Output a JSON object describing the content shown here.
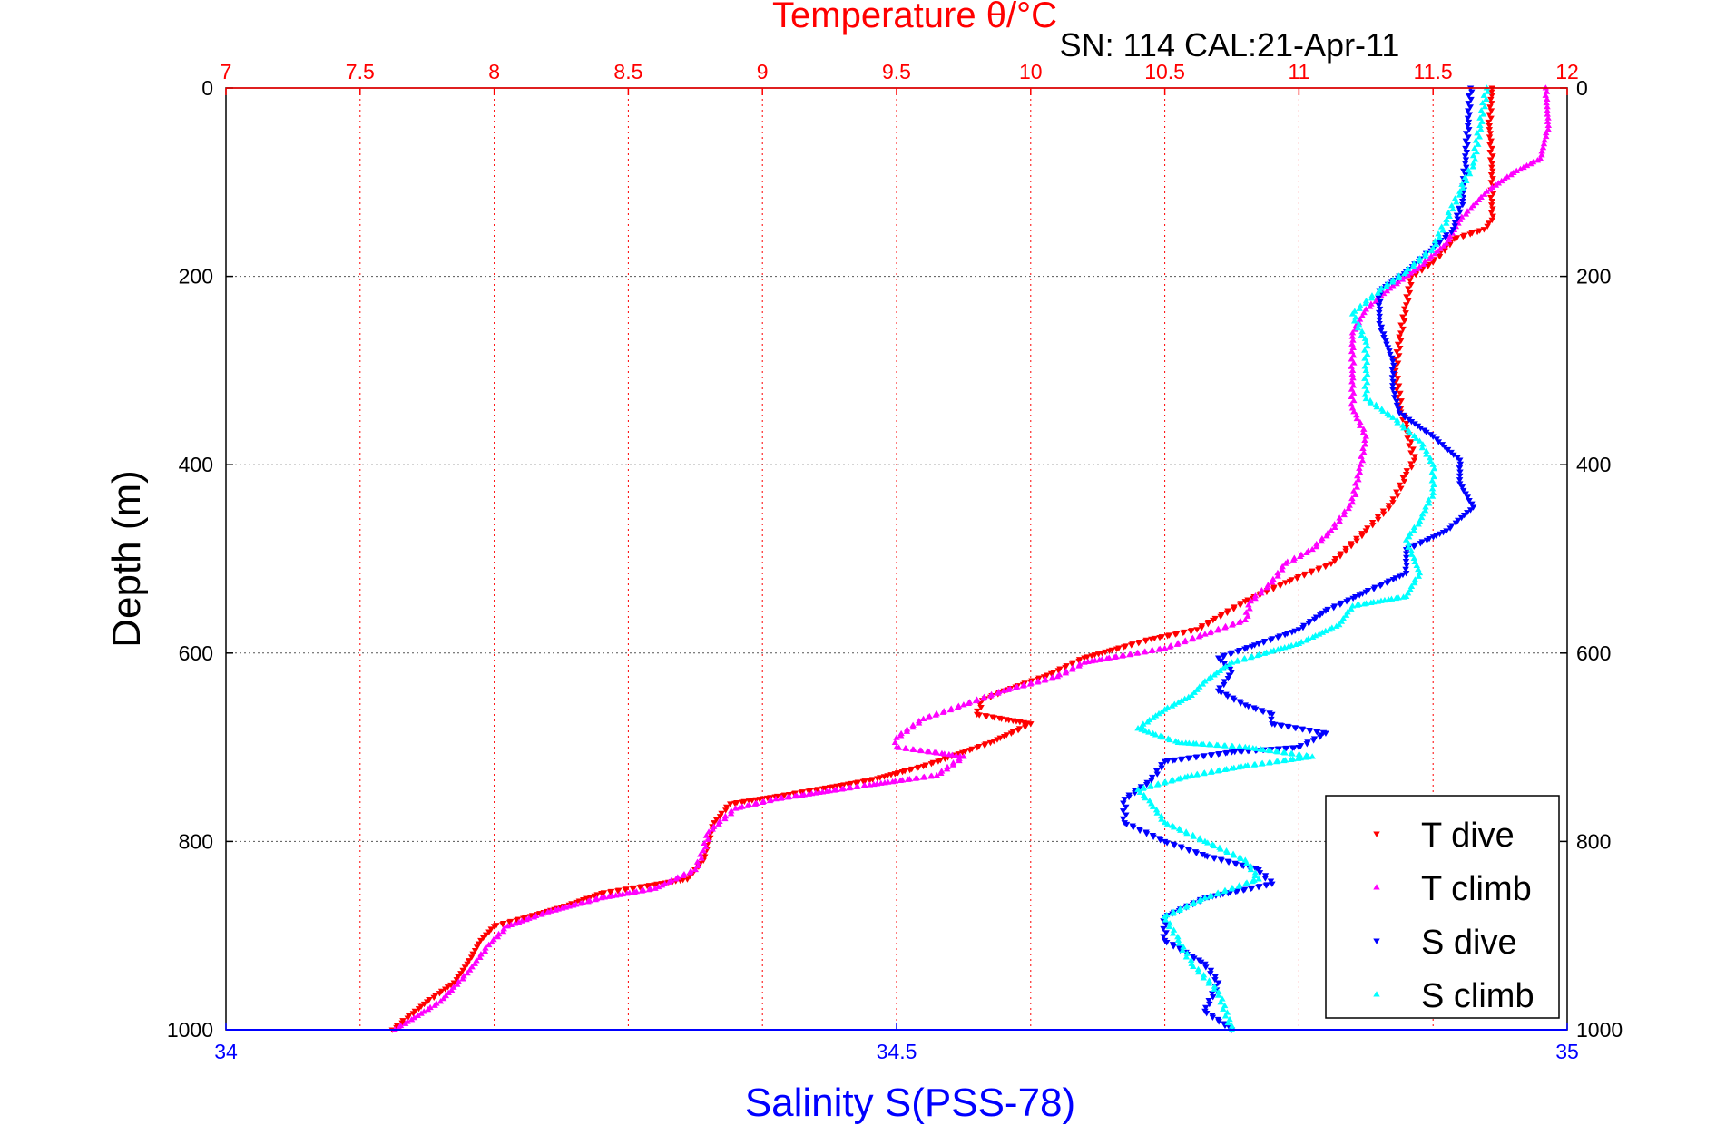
{
  "chart_data": {
    "type": "scatter",
    "title": "SN: 114  CAL:21-Apr-11",
    "top_axis": {
      "label": "Temperature θ/°C",
      "range": [
        7,
        12
      ],
      "ticks": [
        "7",
        "7.5",
        "8",
        "8.5",
        "9",
        "9.5",
        "10",
        "10.5",
        "11",
        "11.5",
        "12"
      ],
      "color": "#ff0000"
    },
    "bottom_axis": {
      "label": "Salinity S(PSS-78)",
      "range": [
        34,
        35
      ],
      "ticks": [
        "34",
        "34.5",
        "35"
      ],
      "color": "#0000ff"
    },
    "y_axis": {
      "label": "Depth (m)",
      "range": [
        0,
        1000
      ],
      "reversed": true,
      "ticks": [
        "0",
        "200",
        "400",
        "600",
        "800",
        "1000"
      ]
    },
    "grid": true,
    "legend_position": "bottom-right",
    "series": [
      {
        "name": "T dive",
        "axis": "top",
        "color": "#ff0000",
        "marker": "triangle-down",
        "points": [
          [
            11.72,
            0
          ],
          [
            11.71,
            40
          ],
          [
            11.72,
            80
          ],
          [
            11.72,
            120
          ],
          [
            11.72,
            140
          ],
          [
            11.69,
            150
          ],
          [
            11.58,
            160
          ],
          [
            11.5,
            185
          ],
          [
            11.42,
            200
          ],
          [
            11.4,
            230
          ],
          [
            11.38,
            260
          ],
          [
            11.36,
            300
          ],
          [
            11.38,
            340
          ],
          [
            11.4,
            360
          ],
          [
            11.43,
            395
          ],
          [
            11.4,
            410
          ],
          [
            11.35,
            440
          ],
          [
            11.25,
            470
          ],
          [
            11.12,
            505
          ],
          [
            10.95,
            525
          ],
          [
            10.8,
            545
          ],
          [
            10.68,
            565
          ],
          [
            10.62,
            575
          ],
          [
            10.45,
            585
          ],
          [
            10.2,
            605
          ],
          [
            10.05,
            625
          ],
          [
            9.9,
            640
          ],
          [
            9.82,
            650
          ],
          [
            9.8,
            665
          ],
          [
            10.0,
            675
          ],
          [
            9.85,
            695
          ],
          [
            9.6,
            720
          ],
          [
            9.4,
            735
          ],
          [
            9.1,
            750
          ],
          [
            8.88,
            760
          ],
          [
            8.82,
            780
          ],
          [
            8.8,
            800
          ],
          [
            8.78,
            820
          ],
          [
            8.72,
            840
          ],
          [
            8.4,
            855
          ],
          [
            8.25,
            870
          ],
          [
            8.0,
            890
          ],
          [
            7.95,
            905
          ],
          [
            7.9,
            930
          ],
          [
            7.85,
            950
          ],
          [
            7.75,
            970
          ],
          [
            7.62,
            1000
          ]
        ]
      },
      {
        "name": "T climb",
        "axis": "top",
        "color": "#ff00ff",
        "marker": "triangle-up",
        "points": [
          [
            11.92,
            0
          ],
          [
            11.93,
            40
          ],
          [
            11.9,
            75
          ],
          [
            11.8,
            90
          ],
          [
            11.7,
            110
          ],
          [
            11.6,
            140
          ],
          [
            11.55,
            165
          ],
          [
            11.45,
            190
          ],
          [
            11.35,
            210
          ],
          [
            11.25,
            235
          ],
          [
            11.2,
            260
          ],
          [
            11.2,
            300
          ],
          [
            11.2,
            340
          ],
          [
            11.25,
            370
          ],
          [
            11.23,
            400
          ],
          [
            11.2,
            440
          ],
          [
            11.12,
            470
          ],
          [
            11.05,
            490
          ],
          [
            10.95,
            505
          ],
          [
            10.9,
            525
          ],
          [
            10.82,
            545
          ],
          [
            10.8,
            565
          ],
          [
            10.65,
            580
          ],
          [
            10.5,
            595
          ],
          [
            10.2,
            610
          ],
          [
            10.1,
            625
          ],
          [
            9.9,
            640
          ],
          [
            9.75,
            655
          ],
          [
            9.6,
            670
          ],
          [
            9.5,
            690
          ],
          [
            9.5,
            700
          ],
          [
            9.75,
            710
          ],
          [
            9.65,
            730
          ],
          [
            9.4,
            740
          ],
          [
            9.05,
            755
          ],
          [
            8.9,
            765
          ],
          [
            8.8,
            790
          ],
          [
            8.78,
            810
          ],
          [
            8.75,
            830
          ],
          [
            8.6,
            850
          ],
          [
            8.4,
            860
          ],
          [
            8.2,
            875
          ],
          [
            8.05,
            890
          ],
          [
            7.98,
            910
          ],
          [
            7.9,
            940
          ],
          [
            7.8,
            970
          ],
          [
            7.63,
            1000
          ]
        ]
      },
      {
        "name": "S dive",
        "axis": "bottom",
        "color": "#0000ff",
        "marker": "triangle-down",
        "points": [
          [
            34.928,
            0
          ],
          [
            34.926,
            40
          ],
          [
            34.924,
            80
          ],
          [
            34.922,
            120
          ],
          [
            34.915,
            150
          ],
          [
            34.9,
            170
          ],
          [
            34.88,
            195
          ],
          [
            34.86,
            215
          ],
          [
            34.86,
            250
          ],
          [
            34.87,
            290
          ],
          [
            34.87,
            320
          ],
          [
            34.875,
            345
          ],
          [
            34.9,
            370
          ],
          [
            34.92,
            395
          ],
          [
            34.92,
            420
          ],
          [
            34.93,
            445
          ],
          [
            34.91,
            470
          ],
          [
            34.88,
            490
          ],
          [
            34.88,
            515
          ],
          [
            34.85,
            535
          ],
          [
            34.82,
            555
          ],
          [
            34.8,
            575
          ],
          [
            34.77,
            590
          ],
          [
            34.74,
            605
          ],
          [
            34.75,
            620
          ],
          [
            34.74,
            640
          ],
          [
            34.76,
            655
          ],
          [
            34.78,
            665
          ],
          [
            34.78,
            675
          ],
          [
            34.82,
            685
          ],
          [
            34.8,
            700
          ],
          [
            34.75,
            705
          ],
          [
            34.7,
            715
          ],
          [
            34.69,
            735
          ],
          [
            34.67,
            755
          ],
          [
            34.67,
            780
          ],
          [
            34.7,
            800
          ],
          [
            34.73,
            815
          ],
          [
            34.77,
            830
          ],
          [
            34.78,
            845
          ],
          [
            34.73,
            860
          ],
          [
            34.7,
            880
          ],
          [
            34.7,
            905
          ],
          [
            34.73,
            930
          ],
          [
            34.74,
            950
          ],
          [
            34.73,
            980
          ],
          [
            34.75,
            1000
          ]
        ]
      },
      {
        "name": "S climb",
        "axis": "bottom",
        "color": "#00ffff",
        "marker": "triangle-up",
        "points": [
          [
            34.94,
            0
          ],
          [
            34.935,
            40
          ],
          [
            34.93,
            80
          ],
          [
            34.92,
            110
          ],
          [
            34.91,
            140
          ],
          [
            34.9,
            170
          ],
          [
            34.88,
            195
          ],
          [
            34.86,
            215
          ],
          [
            34.84,
            240
          ],
          [
            34.85,
            270
          ],
          [
            34.85,
            300
          ],
          [
            34.85,
            330
          ],
          [
            34.87,
            350
          ],
          [
            34.89,
            375
          ],
          [
            34.9,
            400
          ],
          [
            34.9,
            430
          ],
          [
            34.89,
            460
          ],
          [
            34.88,
            480
          ],
          [
            34.89,
            515
          ],
          [
            34.88,
            540
          ],
          [
            34.84,
            550
          ],
          [
            34.83,
            570
          ],
          [
            34.8,
            590
          ],
          [
            34.75,
            610
          ],
          [
            34.73,
            630
          ],
          [
            34.72,
            645
          ],
          [
            34.7,
            660
          ],
          [
            34.68,
            680
          ],
          [
            34.71,
            695
          ],
          [
            34.76,
            700
          ],
          [
            34.81,
            710
          ],
          [
            34.76,
            720
          ],
          [
            34.72,
            730
          ],
          [
            34.68,
            745
          ],
          [
            34.69,
            760
          ],
          [
            34.7,
            780
          ],
          [
            34.73,
            800
          ],
          [
            34.76,
            820
          ],
          [
            34.77,
            840
          ],
          [
            34.73,
            860
          ],
          [
            34.7,
            880
          ],
          [
            34.71,
            905
          ],
          [
            34.72,
            930
          ],
          [
            34.74,
            960
          ],
          [
            34.75,
            1000
          ]
        ]
      }
    ]
  }
}
